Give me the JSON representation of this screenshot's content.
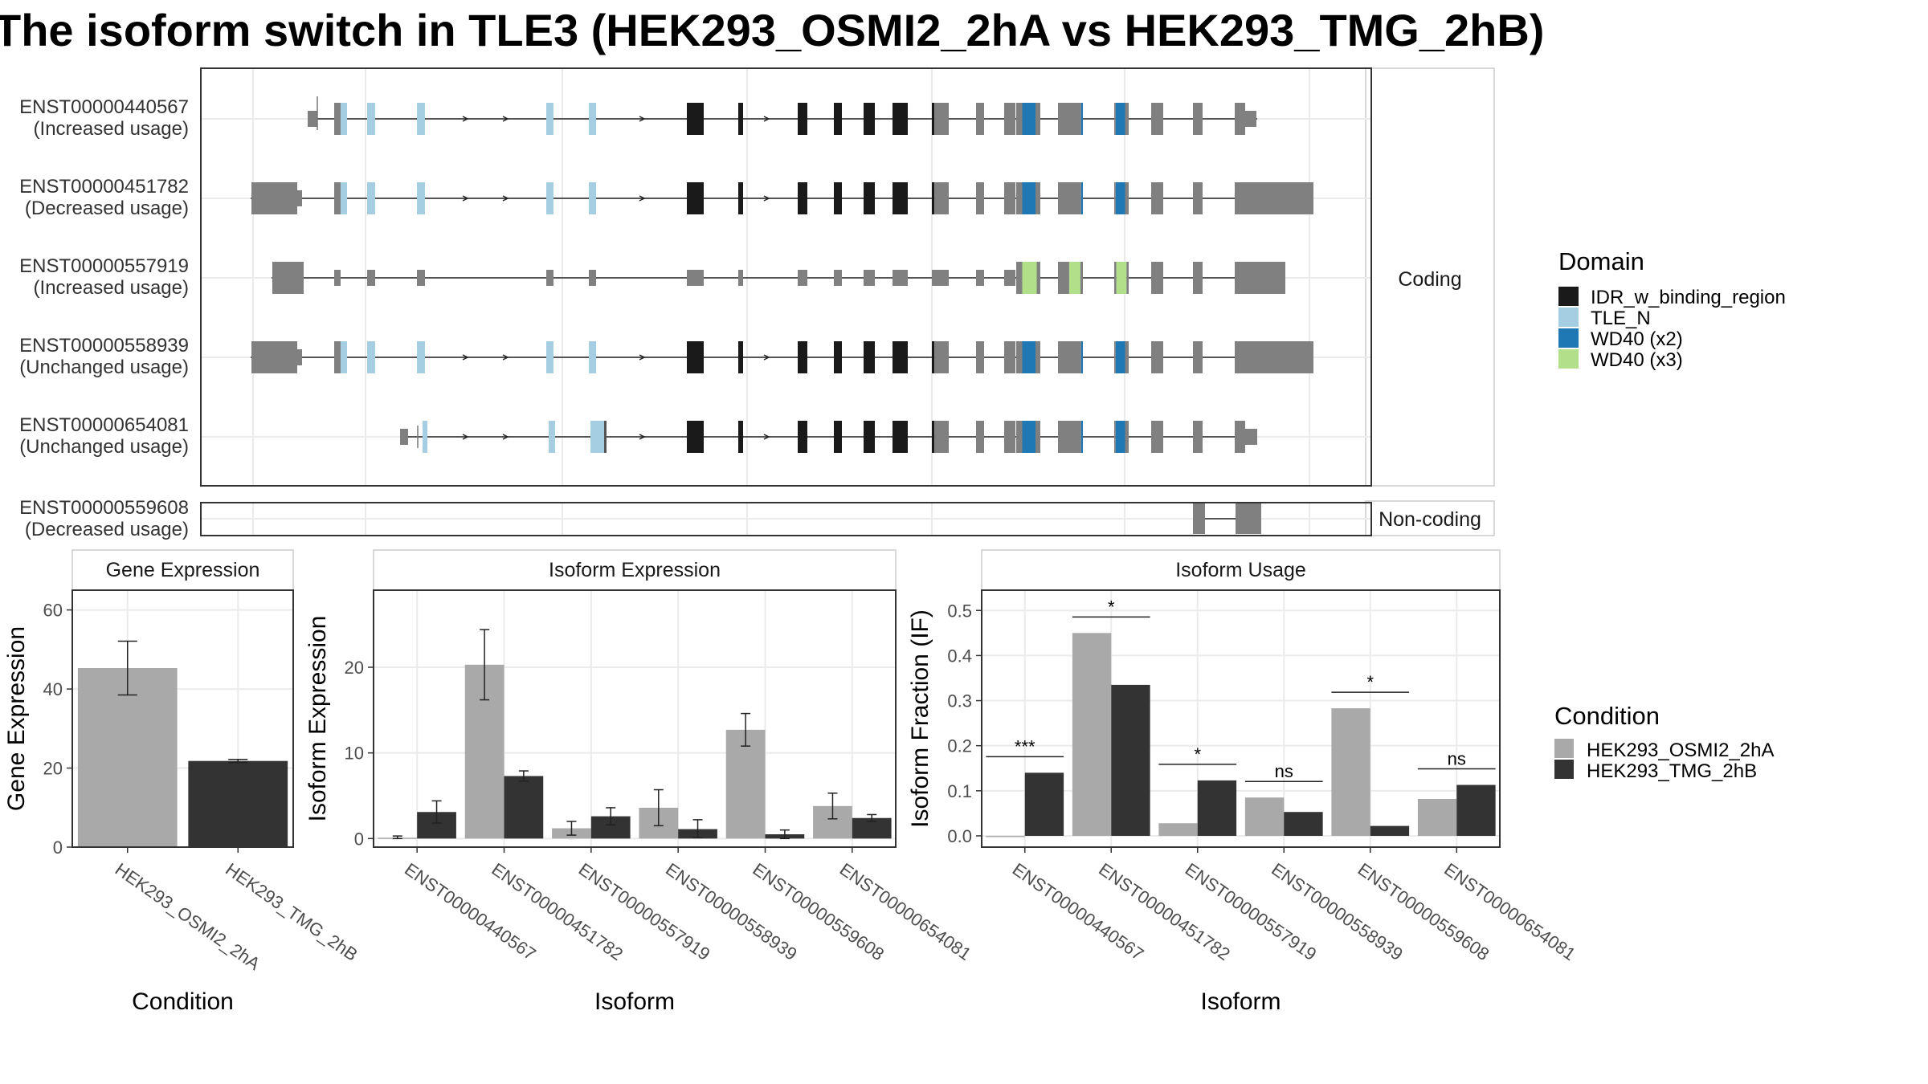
{
  "title": "The isoform switch in TLE3 (HEK293_OSMI2_2hA vs HEK293_TMG_2hB)",
  "colors": {
    "IDR_w_binding_region": "#1a1a1a",
    "TLE_N": "#a6cee3",
    "WD40 (x2)": "#1f78b4",
    "WD40 (x3)": "#b2df8a",
    "utr": "#808080",
    "HEK293_OSMI2_2hA": "#a9a9a9",
    "HEK293_TMG_2hB": "#333333"
  },
  "structure": {
    "coding_label": "Coding",
    "noncoding_label": "Non-coding",
    "domain_legend_title": "Domain",
    "domain_legend": [
      "IDR_w_binding_region",
      "TLE_N",
      "WD40 (x2)",
      "WD40 (x3)"
    ],
    "coding_isoforms": [
      {
        "id": "ENST00000440567",
        "usage": "(Increased usage)",
        "domains": [
          "TLE_N",
          "IDR_w_binding_region",
          "WD40 (x2)"
        ]
      },
      {
        "id": "ENST00000451782",
        "usage": "(Decreased usage)",
        "domains": [
          "TLE_N",
          "IDR_w_binding_region",
          "WD40 (x2)"
        ]
      },
      {
        "id": "ENST00000557919",
        "usage": "(Increased usage)",
        "domains": [
          "WD40 (x3)"
        ]
      },
      {
        "id": "ENST00000558939",
        "usage": "(Unchanged usage)",
        "domains": [
          "TLE_N",
          "IDR_w_binding_region",
          "WD40 (x2)"
        ]
      },
      {
        "id": "ENST00000654081",
        "usage": "(Unchanged usage)",
        "domains": [
          "TLE_N",
          "IDR_w_binding_region",
          "WD40 (x2)"
        ]
      }
    ],
    "noncoding_isoforms": [
      {
        "id": "ENST00000559608",
        "usage": "(Decreased usage)"
      }
    ]
  },
  "chart_data": [
    {
      "type": "bar",
      "title": "Gene Expression",
      "xlabel": "Condition",
      "ylabel": "Gene Expression",
      "ylim": [
        0,
        65
      ],
      "yticks": [
        0,
        20,
        40,
        60
      ],
      "categories": [
        "HEK293_OSMI2_2hA",
        "HEK293_TMG_2hB"
      ],
      "values": [
        45.3,
        21.8
      ],
      "err_low": [
        38.5,
        21.4
      ],
      "err_high": [
        52.1,
        22.2
      ]
    },
    {
      "type": "bar",
      "title": "Isoform Expression",
      "xlabel": "Isoform",
      "ylabel": "Isoform Expression",
      "ylim": [
        -1,
        29
      ],
      "yticks": [
        0,
        10,
        20
      ],
      "categories": [
        "ENST00000440567",
        "ENST00000451782",
        "ENST00000557919",
        "ENST00000558939",
        "ENST00000559608",
        "ENST00000654081"
      ],
      "series": [
        {
          "name": "HEK293_OSMI2_2hA",
          "values": [
            0.1,
            20.3,
            1.2,
            3.6,
            12.7,
            3.8
          ],
          "err_low": [
            0.0,
            16.2,
            0.4,
            1.5,
            10.8,
            2.3
          ],
          "err_high": [
            0.3,
            24.4,
            2.0,
            5.7,
            14.6,
            5.3
          ]
        },
        {
          "name": "HEK293_TMG_2hB",
          "values": [
            3.1,
            7.3,
            2.6,
            1.1,
            0.5,
            2.4
          ],
          "err_low": [
            1.8,
            6.7,
            1.6,
            0.1,
            0.0,
            2.0
          ],
          "err_high": [
            4.4,
            7.9,
            3.6,
            2.2,
            1.0,
            2.8
          ]
        }
      ]
    },
    {
      "type": "bar",
      "title": "Isoform Usage",
      "xlabel": "Isoform",
      "ylabel": "Isoform Fraction (IF)",
      "ylim": [
        -0.025,
        0.545
      ],
      "yticks": [
        0.0,
        0.1,
        0.2,
        0.3,
        0.4,
        0.5
      ],
      "categories": [
        "ENST00000440567",
        "ENST00000451782",
        "ENST00000557919",
        "ENST00000558939",
        "ENST00000559608",
        "ENST00000654081"
      ],
      "series": [
        {
          "name": "HEK293_OSMI2_2hA",
          "values": [
            0.0,
            0.45,
            0.028,
            0.085,
            0.283,
            0.082
          ]
        },
        {
          "name": "HEK293_TMG_2hB",
          "values": [
            0.14,
            0.335,
            0.123,
            0.053,
            0.022,
            0.113
          ]
        }
      ],
      "significance": [
        "***",
        "*",
        "*",
        "ns",
        "*",
        "ns"
      ]
    }
  ],
  "condition_legend": {
    "title": "Condition",
    "items": [
      "HEK293_OSMI2_2hA",
      "HEK293_TMG_2hB"
    ]
  }
}
